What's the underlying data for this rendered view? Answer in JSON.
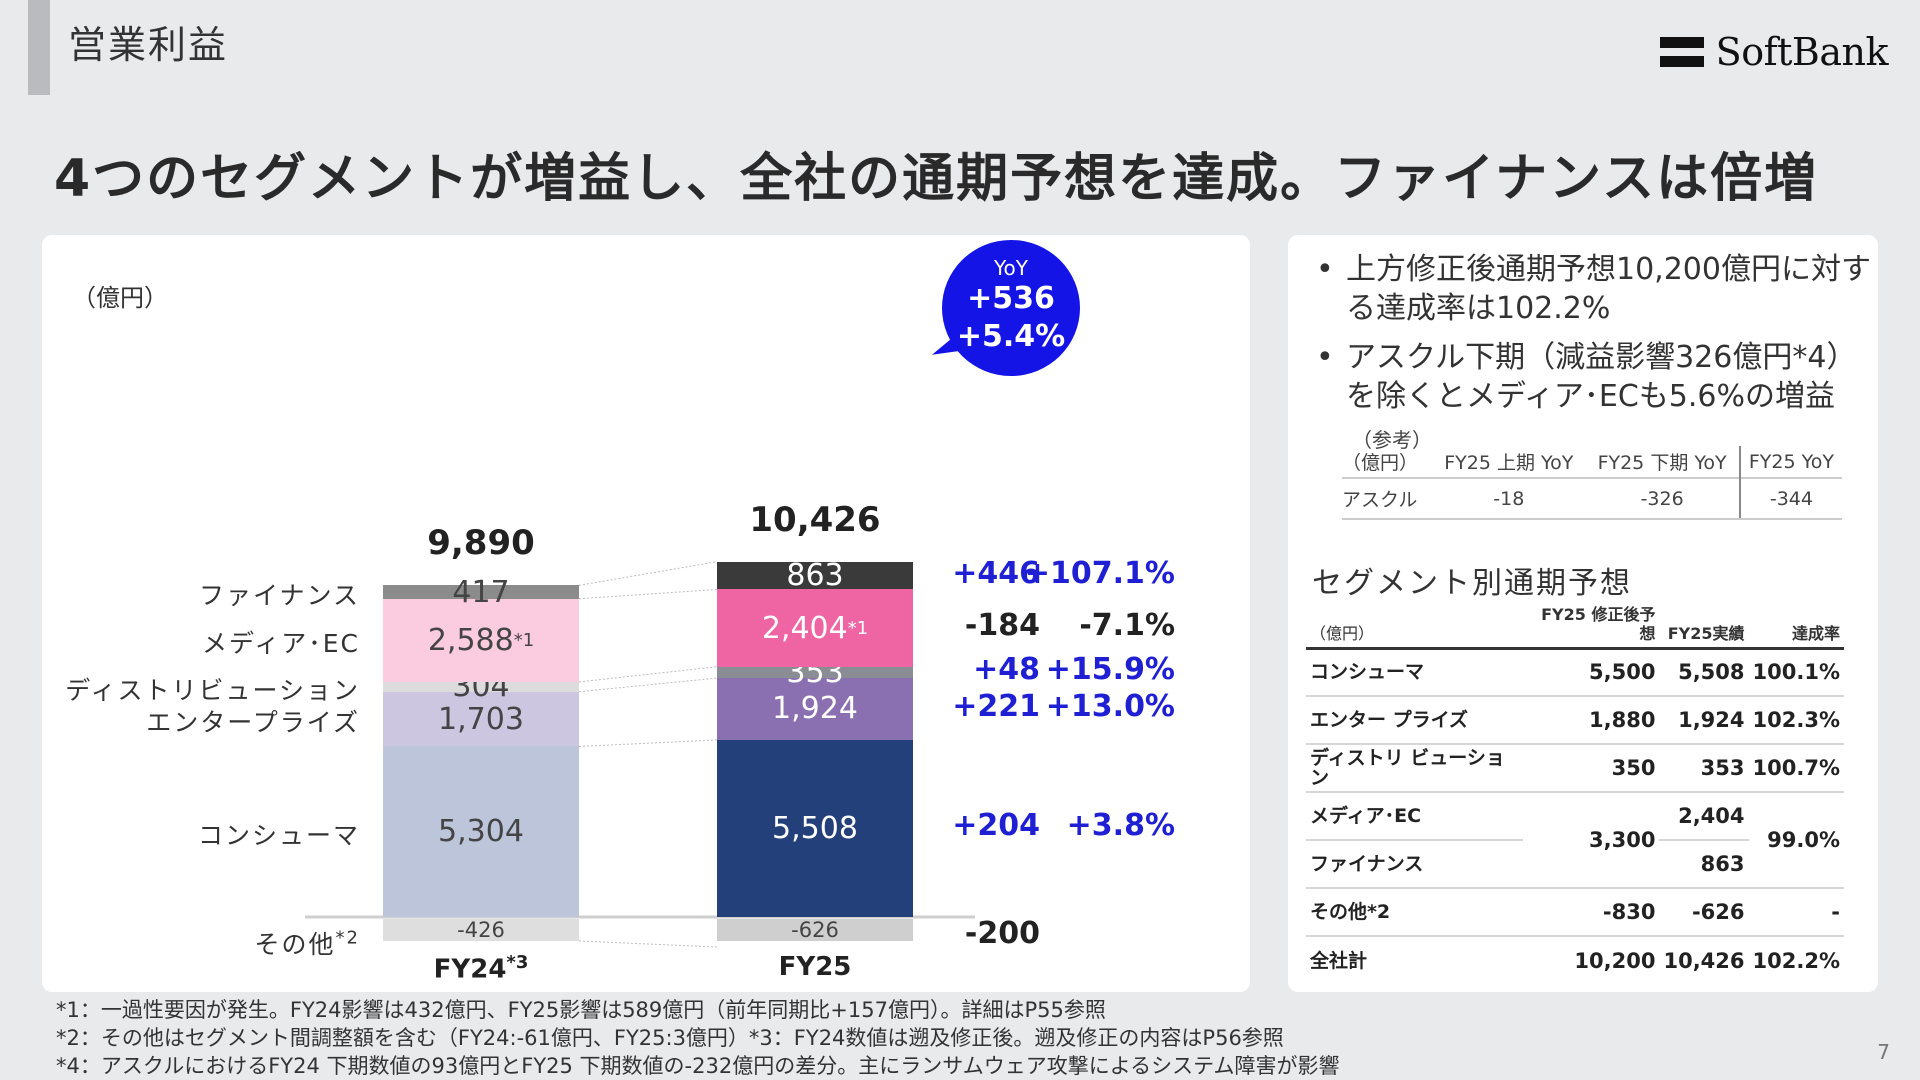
{
  "header": {
    "section_title": "営業利益",
    "logo_text": "SoftBank"
  },
  "headline": "4つのセグメントが増益し、全社の通期予想を達成。ファイナンスは倍増",
  "chart_data": {
    "type": "bar",
    "stacked": true,
    "unit": "（億円）",
    "categories": [
      "FY24*3",
      "FY25"
    ],
    "category_labels": {
      "fy24": "FY24",
      "fy24_sup": "*3",
      "fy25": "FY25"
    },
    "totals": [
      "9,890",
      "10,426"
    ],
    "series": [
      {
        "name": "コンシューマ",
        "values": [
          5304,
          5508
        ],
        "labels": [
          "5,304",
          "5,508"
        ],
        "colors": [
          "#bcc5d9",
          "#24407b"
        ],
        "delta": "+204",
        "pct": "+3.8%",
        "delta_color": "blue"
      },
      {
        "name": "エンタープライズ",
        "values": [
          1703,
          1924
        ],
        "labels": [
          "1,703",
          "1,924"
        ],
        "colors": [
          "#cdc6e0",
          "#8a70b0"
        ],
        "delta": "+221",
        "pct": "+13.0%",
        "delta_color": "blue"
      },
      {
        "name": "ディストリビューション",
        "values": [
          304,
          353
        ],
        "labels": [
          "304",
          "353"
        ],
        "colors": [
          "#dcdcdc",
          "#8b8d94"
        ],
        "delta": "+48",
        "pct": "+15.9%",
        "delta_color": "blue"
      },
      {
        "name": "メディア･EC",
        "values": [
          2588,
          2404
        ],
        "labels": [
          "2,588",
          "2,404"
        ],
        "label_sup": "*1",
        "colors": [
          "#fbcbe0",
          "#ef64a2"
        ],
        "delta": "-184",
        "pct": "-7.1%",
        "delta_color": "dark"
      },
      {
        "name": "ファイナンス",
        "values": [
          417,
          863
        ],
        "labels": [
          "417",
          "863"
        ],
        "colors": [
          "#8b8b8b",
          "#3a3a3a"
        ],
        "delta": "+446",
        "pct": "+107.1%",
        "delta_color": "blue"
      },
      {
        "name": "その他",
        "name_sup": "*2",
        "values": [
          -426,
          -626
        ],
        "labels": [
          "-426",
          "-626"
        ],
        "colors": [
          "#dedede",
          "#cfcfcf"
        ],
        "delta": "-200",
        "delta_color": "dark"
      }
    ],
    "yoy": {
      "title": "YoY",
      "abs": "+536",
      "pct": "+5.4%"
    }
  },
  "side": {
    "bullets": [
      "上方修正後通期予想10,200億円に対する達成率は102.2%",
      "アスクル下期（減益影響326億円*4）を除くとメディア･ECも5.6%の増益"
    ],
    "reference": {
      "title": "（参考）",
      "unit": "（億円）",
      "headers": [
        "FY25 上期 YoY",
        "FY25 下期 YoY",
        "FY25 YoY"
      ],
      "row_label": "アスクル",
      "values": [
        "-18",
        "-326",
        "-344"
      ]
    },
    "segment_forecast": {
      "title": "セグメント別通期予想",
      "unit": "（億円）",
      "headers": [
        "FY25 修正後予想",
        "FY25実績",
        "達成率"
      ],
      "rows": [
        {
          "label": "コンシューマ",
          "forecast": "5,500",
          "actual": "5,508",
          "rate": "100.1%"
        },
        {
          "label": "エンター プライズ",
          "forecast": "1,880",
          "actual": "1,924",
          "rate": "102.3%"
        },
        {
          "label": "ディストリ ビューション",
          "forecast": "350",
          "actual": "353",
          "rate": "100.7%"
        },
        {
          "label": "メディア･EC",
          "forecast": "3,300",
          "actual": "2,404",
          "rate": "99.0%"
        },
        {
          "label": "ファイナンス",
          "forecast": "",
          "actual": "863",
          "rate": ""
        },
        {
          "label": "その他*2",
          "forecast": "-830",
          "actual": "-626",
          "rate": "-"
        },
        {
          "label": "全社計",
          "forecast": "10,200",
          "actual": "10,426",
          "rate": "102.2%"
        }
      ]
    }
  },
  "footnotes": [
    "*1：一過性要因が発生。FY24影響は432億円、FY25影響は589億円（前年同期比+157億円）。詳細はP55参照",
    "*2：その他はセグメント間調整額を含む（FY24:-61億円、FY25:3億円）*3：FY24数値は遡及修正後。遡及修正の内容はP56参照",
    "*4：アスクルにおけるFY24 下期数値の93億円とFY25 下期数値の-232億円の差分。主にランサムウェア攻撃によるシステム障害が影響"
  ],
  "page_number": "7"
}
